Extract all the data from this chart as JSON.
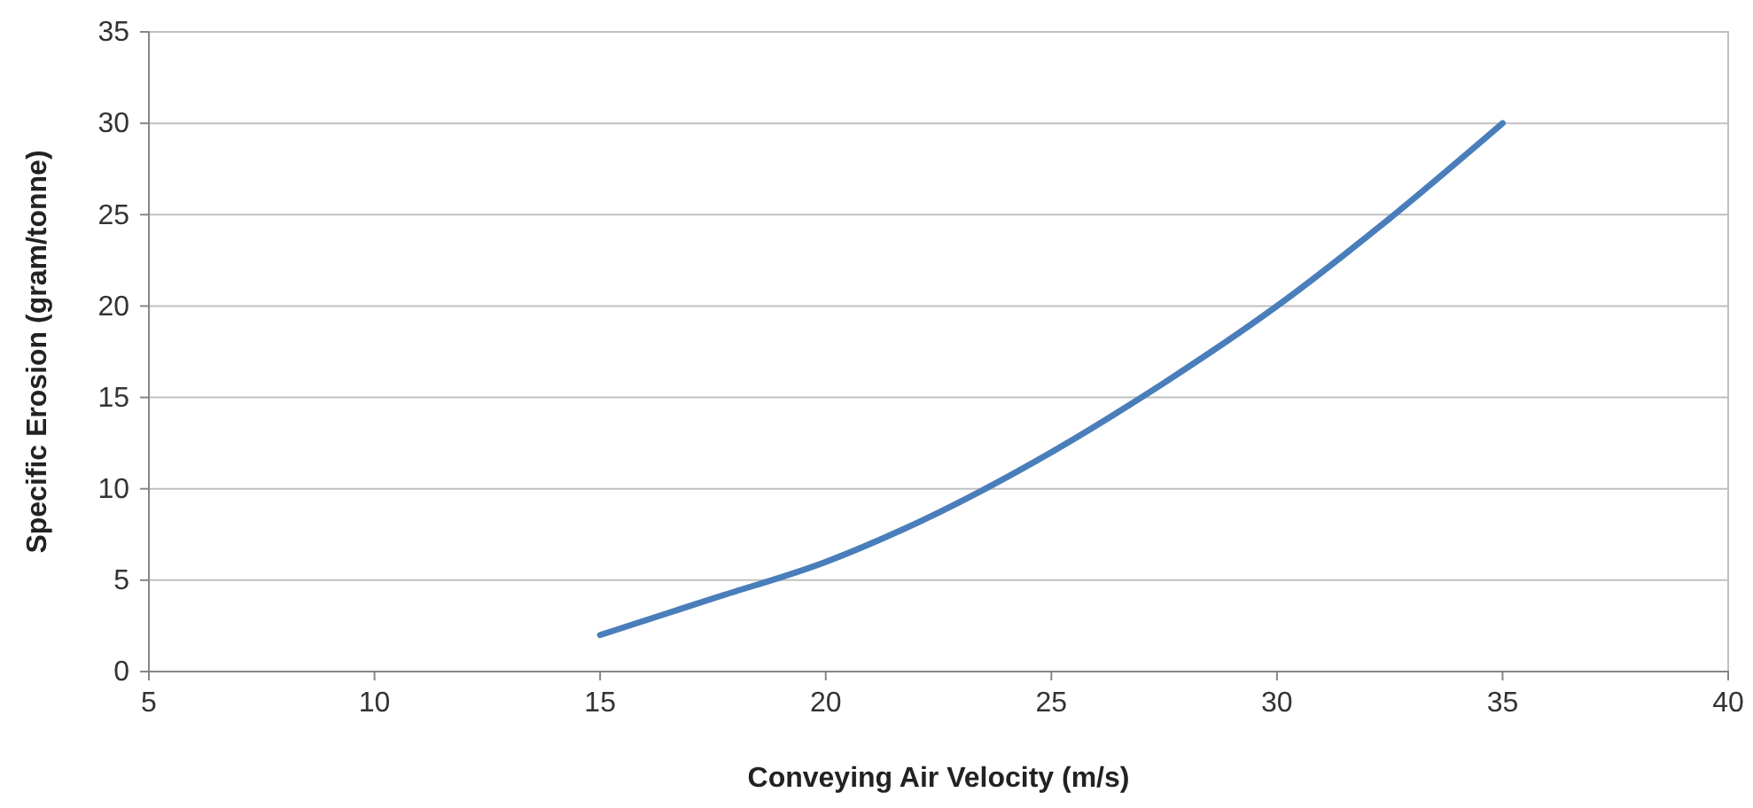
{
  "chart_data": {
    "type": "line",
    "xlabel": "Conveying Air Velocity (m/s)",
    "ylabel": "Specific Erosion  (gram/tonne)",
    "x": [
      15,
      17.5,
      20,
      22.5,
      25,
      27.5,
      30,
      32.5,
      35
    ],
    "series": [
      {
        "color": "#4a7ebb",
        "values": [
          2,
          4,
          6,
          8.7,
          12,
          15.8,
          20,
          24.8,
          30
        ]
      }
    ],
    "xlim": [
      5,
      40
    ],
    "xticks": [
      5,
      10,
      15,
      20,
      25,
      30,
      35,
      40
    ],
    "ylim": [
      0,
      35
    ],
    "yticks": [
      0,
      5,
      10,
      15,
      20,
      25,
      30,
      35
    ],
    "grid": "y",
    "marker": "none",
    "line_style": "solid"
  }
}
